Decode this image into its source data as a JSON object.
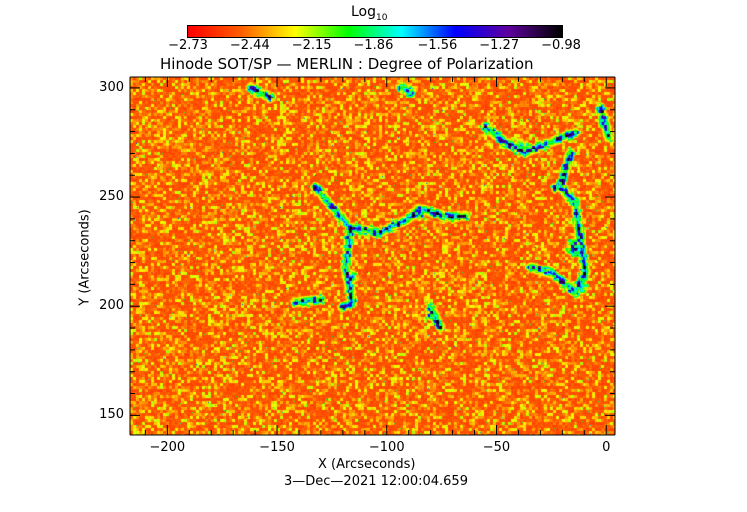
{
  "chart_data": {
    "type": "heatmap",
    "title": "Hinode SOT/SP — MERLIN : Degree of Polarization",
    "xlabel": "X (Arcseconds)",
    "ylabel": "Y (Arcseconds)",
    "xlim": [
      -217,
      4
    ],
    "ylim": [
      141,
      305
    ],
    "xticks": [
      -200,
      -150,
      -100,
      -50,
      0
    ],
    "xtick_labels": [
      "−200",
      "−150",
      "−100",
      "−50",
      "0"
    ],
    "yticks": [
      150,
      200,
      250,
      300
    ],
    "ytick_labels": [
      "150",
      "200",
      "250",
      "300"
    ],
    "colorbar": {
      "label_base": "Log",
      "label_sub": "10",
      "range": [
        -2.73,
        -0.98
      ],
      "tick_values": [
        -2.73,
        -2.44,
        -2.15,
        -1.86,
        -1.56,
        -1.27,
        -0.98
      ],
      "tick_labels": [
        "−2.73",
        "−2.44",
        "−2.15",
        "−1.86",
        "−1.56",
        "−1.27",
        "−0.98"
      ],
      "colormap": [
        "#ff0000",
        "#ff6000",
        "#ffff00",
        "#00ff00",
        "#00ffff",
        "#0000ff",
        "#6000a0",
        "#000000"
      ],
      "placement": "top"
    },
    "timestamp": "3—Dec—2021 12:00:04.659",
    "grid": false
  }
}
